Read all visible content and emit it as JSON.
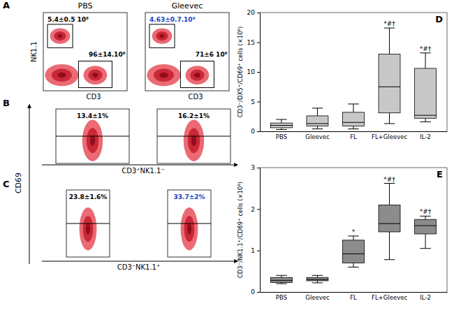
{
  "chart_data": [
    {
      "type": "flow_cytometry",
      "panel": "A",
      "x_label": "CD3",
      "y_label": "NK1.1",
      "tick_labels": false,
      "plots": [
        {
          "title": "PBS",
          "annotations": [
            {
              "text": "5.4±0.5 10⁶",
              "color": "#000000"
            },
            {
              "text": "96±14.10⁶",
              "color": "#000000"
            }
          ]
        },
        {
          "title": "Gleevec",
          "annotations": [
            {
              "text": "4.63±0.7.10⁶",
              "color": "#1a3fc4"
            },
            {
              "text": "71±6 10⁶",
              "color": "#000000"
            }
          ]
        }
      ]
    },
    {
      "type": "flow_cytometry",
      "panel": "B",
      "x_label": "CD3⁺NK1.1⁻",
      "y_label": "CD69",
      "tick_labels": false,
      "plots": [
        {
          "annotations": [
            {
              "text": "13.4±1%",
              "color": "#000000"
            }
          ]
        },
        {
          "annotations": [
            {
              "text": "16.2±1%",
              "color": "#000000"
            }
          ]
        }
      ]
    },
    {
      "type": "flow_cytometry",
      "panel": "C",
      "x_label": "CD3⁻NK1.1⁺",
      "tick_labels": false,
      "plots": [
        {
          "annotations": [
            {
              "text": "23.8±1.6%",
              "color": "#000000"
            }
          ]
        },
        {
          "annotations": [
            {
              "text": "33.7±2%",
              "color": "#1a3fc4"
            }
          ]
        }
      ]
    },
    {
      "type": "box",
      "panel": "D",
      "y_label": "CD3⁻/DX5⁺/CD69⁺ cells (×10⁶)",
      "color": "#c8c8c8",
      "categories": [
        "PBS",
        "Gleevec",
        "FL",
        "FL+Gleevec",
        "IL-2"
      ],
      "low": [
        0.3,
        0.4,
        0.4,
        1.3,
        1.6
      ],
      "q1": [
        0.6,
        0.9,
        0.9,
        3.1,
        2.2
      ],
      "median": [
        1.0,
        1.3,
        1.5,
        7.5,
        2.7
      ],
      "q3": [
        1.4,
        2.6,
        3.2,
        13.0,
        10.6
      ],
      "high": [
        2.0,
        3.9,
        4.6,
        17.4,
        13.2
      ],
      "significance": [
        null,
        null,
        null,
        "*#†",
        "*#†"
      ],
      "ylim": [
        0,
        20
      ],
      "yticks": [
        0,
        5,
        10,
        15,
        20
      ]
    },
    {
      "type": "box",
      "panel": "E",
      "y_label": "CD3⁻/NK1.1⁺/CD69⁺ cells (×10⁶)",
      "color": "#8c8c8c",
      "categories": [
        "PBS",
        "Gleevec",
        "FL",
        "FL+Gleevec",
        "IL-2"
      ],
      "low": [
        0.2,
        0.22,
        0.6,
        0.78,
        1.05
      ],
      "q1": [
        0.23,
        0.27,
        0.7,
        1.45,
        1.4
      ],
      "median": [
        0.28,
        0.3,
        0.92,
        1.65,
        1.6
      ],
      "q3": [
        0.35,
        0.35,
        1.25,
        2.1,
        1.75
      ],
      "high": [
        0.4,
        0.4,
        1.35,
        2.62,
        1.83
      ],
      "significance": [
        null,
        null,
        "*",
        "*#†",
        "*#†"
      ],
      "ylim": [
        0,
        3
      ],
      "yticks": [
        0,
        1,
        2,
        3
      ]
    }
  ]
}
